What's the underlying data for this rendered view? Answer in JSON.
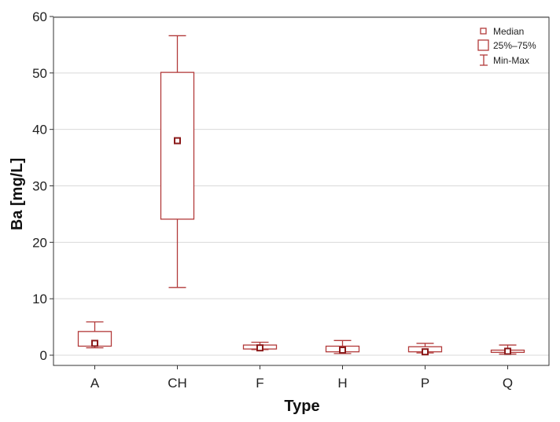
{
  "chart_data": {
    "type": "boxplot",
    "xlabel": "Type",
    "ylabel": "Ba [mg/L]",
    "ylim": [
      0,
      60
    ],
    "yticks": [
      0,
      10,
      20,
      30,
      40,
      50,
      60
    ],
    "grid": "horizontal",
    "legend_position": "top-right",
    "legend": {
      "median": "Median",
      "box": "25%–75%",
      "whisker": "Min-Max"
    },
    "categories": [
      "A",
      "CH",
      "F",
      "H",
      "P",
      "Q"
    ],
    "series": [
      {
        "category": "A",
        "min": 1.3,
        "q1": 1.6,
        "median": 2.1,
        "q3": 4.2,
        "max": 5.9
      },
      {
        "category": "CH",
        "min": 12.0,
        "q1": 24.1,
        "median": 38.0,
        "q3": 50.1,
        "max": 56.6
      },
      {
        "category": "F",
        "min": 1.0,
        "q1": 1.1,
        "median": 1.3,
        "q3": 1.8,
        "max": 2.3
      },
      {
        "category": "H",
        "min": 0.3,
        "q1": 0.6,
        "median": 0.9,
        "q3": 1.6,
        "max": 2.6
      },
      {
        "category": "P",
        "min": 0.4,
        "q1": 0.6,
        "median": 0.6,
        "q3": 1.5,
        "max": 2.1
      },
      {
        "category": "Q",
        "min": 0.2,
        "q1": 0.5,
        "median": 0.7,
        "q3": 0.9,
        "max": 1.8
      }
    ],
    "colors": {
      "stroke": "#b23a3a",
      "median_fill": "#8b1a1a",
      "grid": "#d9d9d9",
      "axis": "#333333"
    }
  }
}
